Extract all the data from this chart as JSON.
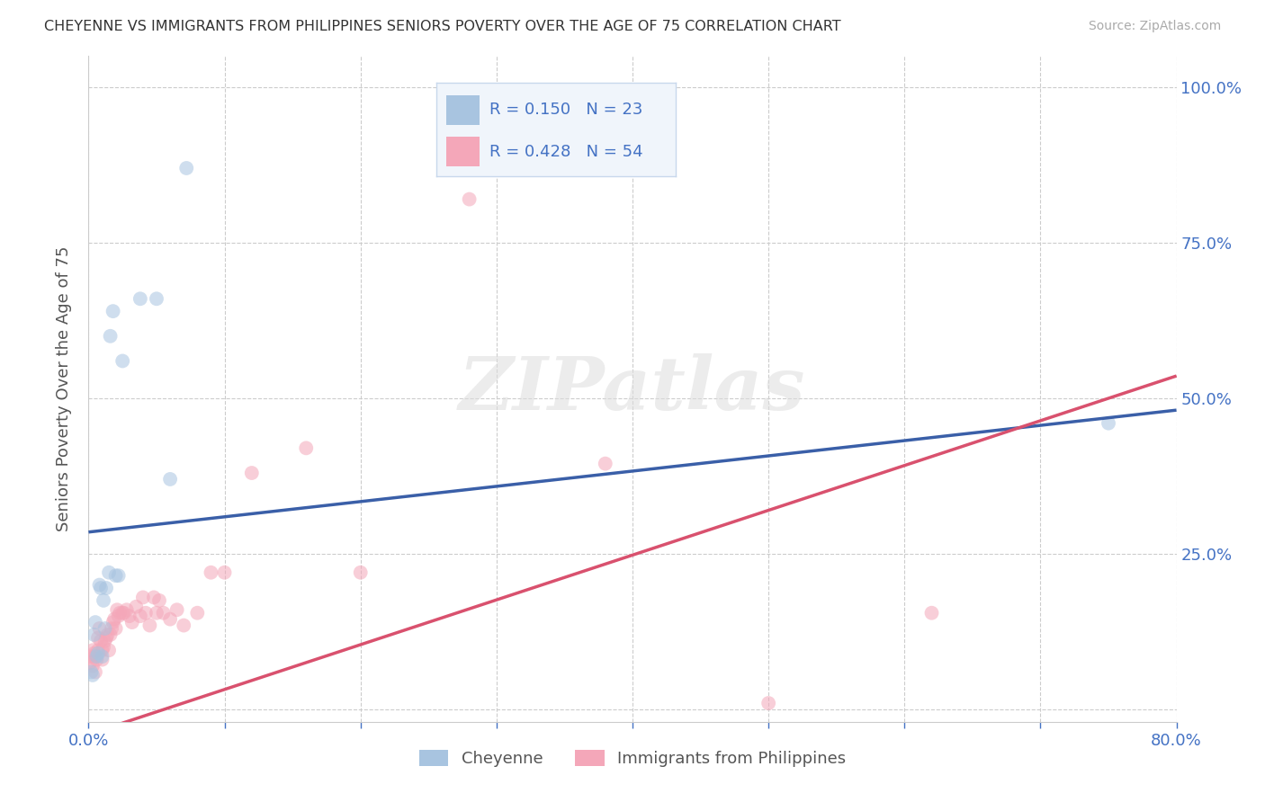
{
  "title": "CHEYENNE VS IMMIGRANTS FROM PHILIPPINES SENIORS POVERTY OVER THE AGE OF 75 CORRELATION CHART",
  "source": "Source: ZipAtlas.com",
  "ylabel": "Seniors Poverty Over the Age of 75",
  "xlim": [
    0.0,
    0.8
  ],
  "ylim": [
    -0.02,
    1.05
  ],
  "xticks": [
    0.0,
    0.1,
    0.2,
    0.3,
    0.4,
    0.5,
    0.6,
    0.7,
    0.8
  ],
  "xticklabels": [
    "0.0%",
    "",
    "",
    "",
    "",
    "",
    "",
    "",
    "80.0%"
  ],
  "yticks": [
    0.0,
    0.25,
    0.5,
    0.75,
    1.0
  ],
  "right_yticklabels": [
    "",
    "25.0%",
    "50.0%",
    "75.0%",
    "100.0%"
  ],
  "cheyenne_color": "#a8c4e0",
  "cheyenne_line_color": "#3a5fa8",
  "philippines_color": "#f4a7b9",
  "philippines_line_color": "#d9516e",
  "philippines_dash_color": "#d9a0b0",
  "watermark_text": "ZIPatlas",
  "cheyenne_R": 0.15,
  "cheyenne_N": 23,
  "philippines_R": 0.428,
  "philippines_N": 54,
  "cheyenne_x": [
    0.002,
    0.003,
    0.004,
    0.005,
    0.006,
    0.007,
    0.008,
    0.009,
    0.01,
    0.011,
    0.012,
    0.013,
    0.015,
    0.016,
    0.018,
    0.02,
    0.022,
    0.025,
    0.038,
    0.05,
    0.06,
    0.072,
    0.75
  ],
  "cheyenne_y": [
    0.06,
    0.055,
    0.12,
    0.14,
    0.085,
    0.09,
    0.2,
    0.195,
    0.085,
    0.175,
    0.13,
    0.195,
    0.22,
    0.6,
    0.64,
    0.215,
    0.215,
    0.56,
    0.66,
    0.66,
    0.37,
    0.87,
    0.46
  ],
  "philippines_x": [
    0.001,
    0.002,
    0.003,
    0.003,
    0.004,
    0.005,
    0.005,
    0.006,
    0.007,
    0.007,
    0.008,
    0.009,
    0.01,
    0.01,
    0.011,
    0.012,
    0.013,
    0.014,
    0.015,
    0.016,
    0.017,
    0.018,
    0.019,
    0.02,
    0.021,
    0.022,
    0.023,
    0.025,
    0.026,
    0.028,
    0.03,
    0.032,
    0.035,
    0.038,
    0.04,
    0.042,
    0.045,
    0.048,
    0.05,
    0.052,
    0.055,
    0.06,
    0.065,
    0.07,
    0.08,
    0.09,
    0.1,
    0.12,
    0.16,
    0.2,
    0.28,
    0.38,
    0.5,
    0.62
  ],
  "philippines_y": [
    0.075,
    0.085,
    0.07,
    0.095,
    0.09,
    0.06,
    0.085,
    0.08,
    0.095,
    0.115,
    0.13,
    0.11,
    0.08,
    0.095,
    0.1,
    0.11,
    0.115,
    0.12,
    0.095,
    0.12,
    0.13,
    0.14,
    0.145,
    0.13,
    0.16,
    0.15,
    0.155,
    0.155,
    0.155,
    0.16,
    0.15,
    0.14,
    0.165,
    0.15,
    0.18,
    0.155,
    0.135,
    0.18,
    0.155,
    0.175,
    0.155,
    0.145,
    0.16,
    0.135,
    0.155,
    0.22,
    0.22,
    0.38,
    0.42,
    0.22,
    0.82,
    0.395,
    0.01,
    0.155
  ],
  "marker_size": 130,
  "marker_alpha": 0.55,
  "grid_color": "#cccccc",
  "axis_color": "#4472c4",
  "background_color": "#ffffff",
  "legend_facecolor": "#f0f5fb",
  "legend_edgecolor": "#c8d8ec",
  "cheyenne_line_intercept": 0.285,
  "cheyenne_line_slope": 0.245,
  "philippines_line_intercept": -0.04,
  "philippines_line_slope": 0.72
}
